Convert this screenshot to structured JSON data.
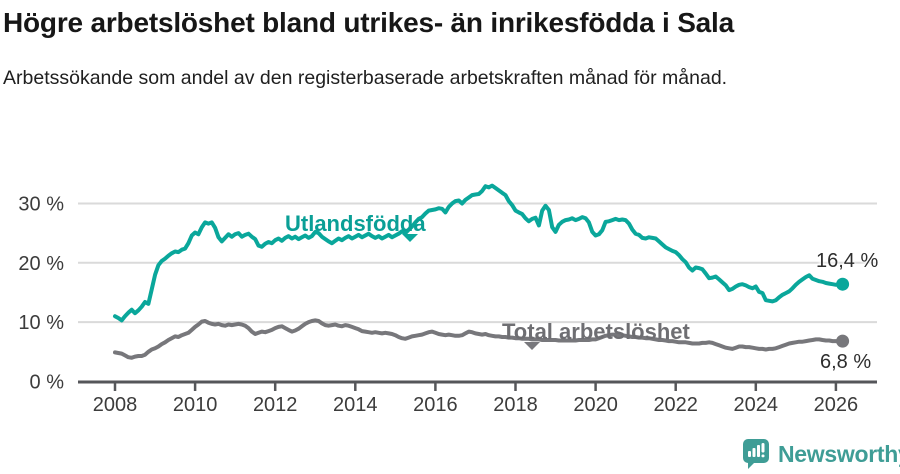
{
  "header": {
    "title": "Högre arbetslöshet bland utrikes- än inrikesfödda i Sala",
    "subtitle": "Arbetssökande som andel av den registerbaserade arbetskraften månad för månad."
  },
  "colors": {
    "teal": "#0aa79b",
    "gray": "#77777b",
    "grid": "#dadada",
    "axis": "#55565a",
    "tick_text": "#3c3c3c",
    "title_text": "#171717",
    "brand": "#3f9d96"
  },
  "footer": {
    "brand": "Newsworthy"
  },
  "chart_data": {
    "type": "line",
    "x_start": 2008,
    "x_step_months": 1,
    "xlim": [
      2008,
      2026.25
    ],
    "ylim": [
      0,
      35
    ],
    "grid": "horizontal",
    "legend_position": "inline-labels",
    "x_axis": {
      "ticks": [
        2008,
        2010,
        2012,
        2014,
        2016,
        2018,
        2020,
        2022,
        2024,
        2026
      ]
    },
    "y_axis": {
      "ticks": [
        0,
        10,
        20,
        30
      ],
      "tick_suffix": " %"
    },
    "series": [
      {
        "name": "Utlandsfödda",
        "color": "#0aa79b",
        "end_label": "16,4 %",
        "last_value": 16.4,
        "values": [
          11.0,
          10.7,
          10.3,
          11.0,
          11.6,
          12.1,
          11.5,
          12.0,
          12.6,
          13.4,
          13.1,
          15.5,
          18.0,
          19.6,
          20.3,
          20.7,
          21.2,
          21.6,
          21.9,
          21.8,
          22.2,
          22.4,
          23.3,
          24.6,
          25.1,
          24.8,
          26.0,
          26.8,
          26.6,
          26.8,
          25.9,
          24.3,
          23.6,
          24.2,
          24.8,
          24.4,
          24.8,
          25.0,
          24.4,
          24.7,
          24.9,
          24.4,
          24.0,
          22.9,
          22.7,
          23.2,
          23.5,
          23.3,
          23.8,
          24.1,
          23.7,
          24.2,
          24.5,
          24.1,
          24.4,
          24.0,
          24.3,
          24.6,
          24.2,
          24.5,
          25.2,
          25.0,
          24.4,
          24.0,
          23.6,
          23.3,
          23.7,
          24.1,
          23.8,
          24.2,
          24.5,
          24.1,
          24.4,
          24.7,
          24.3,
          24.6,
          24.9,
          24.5,
          24.2,
          24.5,
          24.1,
          24.4,
          24.7,
          24.3,
          24.6,
          24.9,
          25.3,
          25.0,
          25.6,
          26.1,
          26.8,
          27.4,
          27.7,
          28.3,
          28.8,
          28.9,
          29.0,
          29.2,
          29.1,
          28.5,
          29.4,
          30.0,
          30.4,
          30.5,
          30.0,
          30.6,
          31.0,
          31.4,
          31.5,
          31.6,
          32.1,
          32.9,
          32.7,
          33.0,
          32.6,
          32.2,
          31.8,
          31.4,
          30.4,
          29.7,
          28.8,
          28.5,
          28.2,
          27.5,
          27.0,
          27.4,
          27.6,
          26.3,
          28.8,
          29.6,
          28.9,
          26.0,
          25.2,
          26.4,
          26.9,
          27.2,
          27.3,
          27.5,
          27.2,
          27.4,
          27.7,
          27.5,
          26.8,
          25.2,
          24.6,
          24.8,
          25.5,
          26.9,
          27.0,
          27.2,
          27.4,
          27.2,
          27.3,
          27.2,
          26.6,
          25.6,
          24.9,
          24.7,
          24.2,
          24.1,
          24.3,
          24.2,
          24.1,
          23.6,
          23.1,
          22.6,
          22.3,
          22.0,
          21.8,
          21.3,
          20.6,
          20.1,
          19.2,
          18.7,
          19.2,
          19.1,
          18.9,
          18.2,
          17.4,
          17.5,
          17.7,
          17.2,
          16.7,
          16.2,
          15.4,
          15.6,
          16.0,
          16.3,
          16.4,
          16.2,
          15.9,
          15.7,
          16.0,
          15.1,
          14.9,
          13.7,
          13.6,
          13.5,
          13.7,
          14.2,
          14.6,
          14.9,
          15.2,
          15.7,
          16.3,
          16.8,
          17.2,
          17.6,
          17.9,
          17.3,
          17.1,
          16.9,
          16.8,
          16.6,
          16.5,
          16.4,
          16.3,
          16.4,
          16.4
        ]
      },
      {
        "name": "Total arbetslöshet",
        "color": "#77777b",
        "end_label": "6,8 %",
        "last_value": 6.8,
        "values": [
          4.9,
          4.8,
          4.7,
          4.4,
          4.1,
          4.0,
          4.2,
          4.3,
          4.3,
          4.5,
          5.0,
          5.4,
          5.6,
          5.9,
          6.3,
          6.6,
          7.0,
          7.3,
          7.6,
          7.5,
          7.8,
          8.0,
          8.2,
          8.7,
          9.2,
          9.6,
          10.1,
          10.2,
          9.9,
          9.7,
          9.6,
          9.7,
          9.5,
          9.4,
          9.6,
          9.5,
          9.6,
          9.7,
          9.6,
          9.4,
          9.0,
          8.4,
          8.0,
          8.2,
          8.4,
          8.3,
          8.5,
          8.7,
          9.0,
          9.2,
          9.3,
          9.0,
          8.7,
          8.4,
          8.6,
          8.9,
          9.3,
          9.7,
          10.0,
          10.2,
          10.3,
          10.2,
          9.8,
          9.5,
          9.4,
          9.5,
          9.6,
          9.4,
          9.3,
          9.5,
          9.4,
          9.2,
          9.0,
          8.8,
          8.5,
          8.4,
          8.3,
          8.2,
          8.3,
          8.2,
          8.1,
          8.2,
          8.1,
          8.0,
          7.8,
          7.5,
          7.3,
          7.2,
          7.4,
          7.6,
          7.7,
          7.8,
          7.9,
          8.1,
          8.3,
          8.4,
          8.2,
          8.0,
          7.9,
          7.8,
          7.9,
          7.8,
          7.7,
          7.7,
          7.8,
          8.1,
          8.4,
          8.3,
          8.1,
          8.0,
          7.9,
          8.0,
          7.8,
          7.7,
          7.6,
          7.6,
          7.5,
          7.5,
          7.4,
          7.4,
          7.3,
          7.3,
          7.2,
          7.2,
          7.2,
          7.1,
          7.1,
          7.1,
          7.0,
          7.0,
          7.0,
          7.0,
          7.0,
          6.9,
          6.9,
          6.9,
          6.9,
          6.9,
          6.9,
          7.0,
          7.0,
          7.0,
          7.0,
          7.1,
          7.1,
          7.3,
          7.5,
          7.7,
          7.8,
          7.9,
          7.9,
          7.8,
          7.8,
          7.7,
          7.6,
          7.5,
          7.5,
          7.4,
          7.4,
          7.3,
          7.3,
          7.2,
          7.1,
          7.0,
          7.0,
          6.9,
          6.8,
          6.8,
          6.7,
          6.6,
          6.6,
          6.6,
          6.5,
          6.4,
          6.4,
          6.4,
          6.5,
          6.5,
          6.6,
          6.5,
          6.3,
          6.1,
          5.9,
          5.7,
          5.6,
          5.5,
          5.7,
          5.9,
          5.9,
          5.8,
          5.8,
          5.7,
          5.6,
          5.5,
          5.5,
          5.4,
          5.5,
          5.5,
          5.6,
          5.8,
          6.0,
          6.2,
          6.4,
          6.5,
          6.6,
          6.7,
          6.7,
          6.8,
          6.9,
          7.0,
          7.1,
          7.1,
          7.0,
          6.9,
          6.9,
          6.8,
          6.8,
          6.7,
          6.8
        ]
      }
    ]
  }
}
